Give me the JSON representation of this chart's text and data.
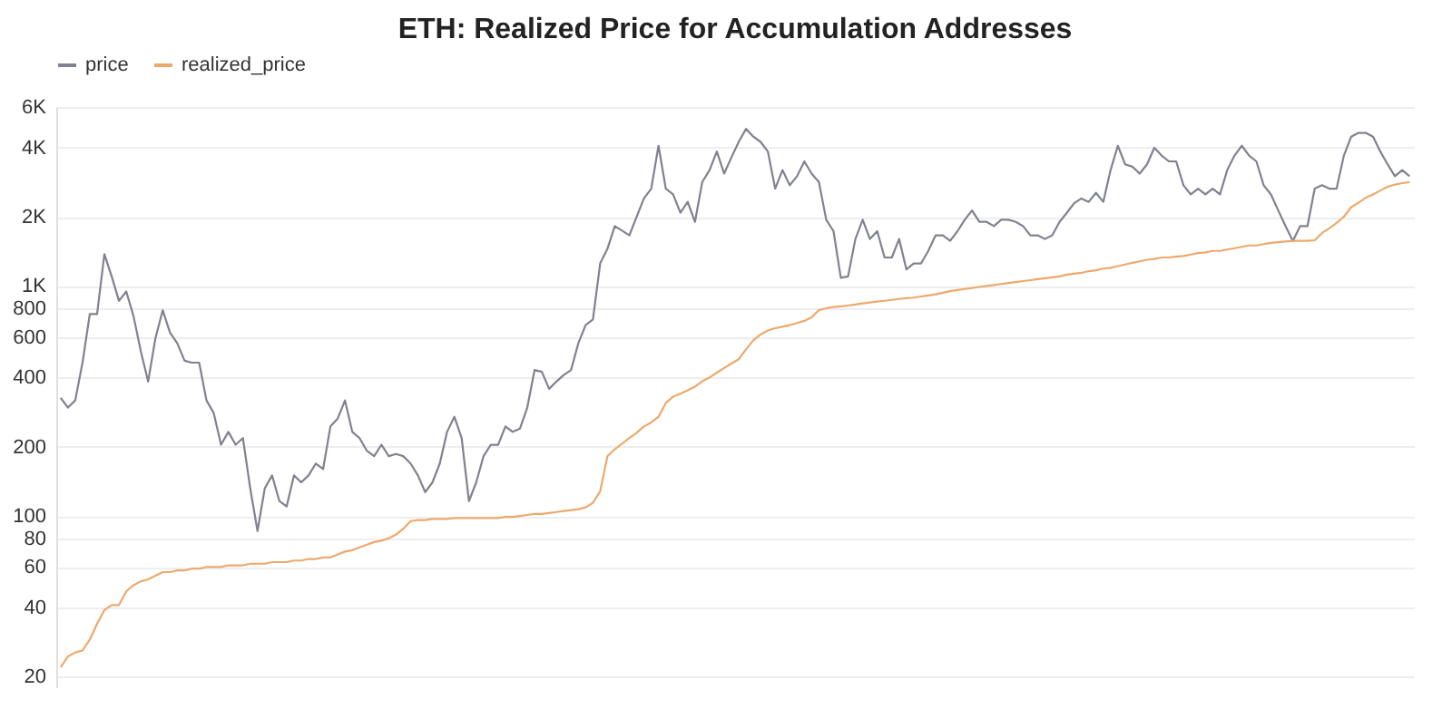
{
  "chart_data": {
    "type": "line",
    "title": "ETH: Realized Price for Accumulation Addresses",
    "categories": [
      null,
      null,
      null,
      null,
      null,
      null,
      null,
      null,
      null,
      null,
      null,
      null,
      null,
      null,
      null,
      null,
      null,
      null,
      null,
      null,
      null,
      null,
      null,
      null,
      null,
      null,
      null,
      null,
      null,
      null,
      null,
      null,
      null,
      null,
      null,
      null,
      null,
      null,
      null,
      null,
      null,
      null,
      null,
      null,
      null,
      null,
      null,
      null,
      null,
      null,
      null,
      null,
      null,
      null,
      null,
      null,
      null,
      null,
      null,
      null,
      null,
      null,
      null,
      null,
      null,
      null,
      null,
      null,
      null,
      null,
      null,
      null,
      null,
      null,
      null,
      null,
      null,
      null,
      null,
      null,
      null,
      null,
      null,
      null,
      null,
      null,
      null,
      null,
      null,
      null,
      null,
      null,
      null,
      null,
      null,
      null,
      null,
      null,
      null,
      null,
      null,
      null,
      null,
      null,
      null,
      null,
      null,
      null,
      null,
      null,
      null,
      null,
      null,
      null,
      null,
      null,
      null,
      null,
      null,
      null,
      null,
      null,
      null,
      null,
      null,
      null,
      null,
      null,
      null,
      null,
      null,
      null,
      null,
      null,
      null,
      null,
      null,
      null,
      null,
      null,
      null,
      null,
      null,
      null,
      null,
      null,
      null,
      null,
      null,
      null,
      null,
      null,
      null,
      null,
      null,
      null,
      null,
      null,
      null,
      null,
      null,
      null,
      null,
      null,
      null,
      null,
      null,
      null,
      null,
      null,
      null,
      null,
      null,
      null,
      null,
      null,
      null,
      null,
      null,
      null,
      null,
      null,
      null,
      null,
      null,
      null
    ],
    "series": [
      {
        "name": "price",
        "color": "#80828f",
        "values": [
          326,
          296,
          318,
          464,
          755,
          755,
          1375,
          1100,
          861,
          946,
          738,
          520,
          384,
          593,
          784,
          627,
          563,
          473,
          464,
          464,
          318,
          280,
          204,
          232,
          204,
          218,
          132,
          86,
          132,
          150,
          116,
          110,
          150,
          140,
          150,
          169,
          160,
          245,
          265,
          318,
          232,
          218,
          192,
          182,
          204,
          182,
          186,
          182,
          169,
          150,
          127,
          140,
          169,
          232,
          270,
          218,
          116,
          140,
          182,
          204,
          204,
          245,
          232,
          240,
          296,
          431,
          423,
          357,
          384,
          410,
          431,
          563,
          675,
          715,
          1253,
          1452,
          1820,
          1740,
          1660,
          2000,
          2400,
          2650,
          4070,
          2650,
          2500,
          2080,
          2320,
          1900,
          2830,
          3190,
          3840,
          3080,
          3620,
          4230,
          4820,
          4460,
          4230,
          3840,
          2650,
          3190,
          2740,
          3000,
          3480,
          3080,
          2830,
          1940,
          1730,
          1085,
          1100,
          1600,
          1940,
          1600,
          1730,
          1330,
          1330,
          1600,
          1180,
          1253,
          1253,
          1420,
          1660,
          1660,
          1570,
          1730,
          1940,
          2130,
          1900,
          1900,
          1820,
          1940,
          1940,
          1900,
          1820,
          1660,
          1660,
          1600,
          1660,
          1900,
          2080,
          2290,
          2400,
          2320,
          2540,
          2320,
          3190,
          4070,
          3380,
          3300,
          3080,
          3380,
          3990,
          3690,
          3480,
          3480,
          2740,
          2500,
          2650,
          2500,
          2650,
          2500,
          3190,
          3690,
          4070,
          3690,
          3480,
          2740,
          2500,
          2130,
          1820,
          1570,
          1820,
          1820,
          2650,
          2740,
          2650,
          2650,
          3690,
          4460,
          4630,
          4630,
          4460,
          3840,
          3380,
          3000,
          3190,
          3000
        ]
      },
      {
        "name": "realized_price",
        "color": "#eda96c",
        "values": [
          22,
          24.5,
          25.5,
          26,
          29,
          34,
          39,
          41,
          41,
          47,
          50,
          52,
          53,
          55,
          57,
          57,
          58,
          58,
          59,
          59,
          60,
          60,
          60,
          61,
          61,
          61,
          62,
          62,
          62,
          63,
          63,
          63,
          64,
          64,
          65,
          65,
          66,
          66,
          68,
          70,
          71,
          73,
          75,
          77,
          78,
          80,
          83,
          88,
          95,
          96,
          96,
          97,
          97,
          97,
          98,
          98,
          98,
          98,
          98,
          98,
          98,
          99,
          99,
          100,
          101,
          102,
          102,
          103,
          104,
          105,
          106,
          107,
          109,
          114,
          128,
          182,
          195,
          206,
          218,
          230,
          245,
          255,
          270,
          310,
          330,
          340,
          352,
          365,
          385,
          400,
          420,
          440,
          460,
          480,
          530,
          580,
          615,
          640,
          655,
          665,
          675,
          690,
          705,
          730,
          785,
          800,
          810,
          815,
          822,
          830,
          840,
          848,
          855,
          862,
          870,
          878,
          885,
          890,
          900,
          910,
          920,
          935,
          950,
          960,
          970,
          980,
          990,
          1000,
          1010,
          1020,
          1030,
          1040,
          1050,
          1060,
          1070,
          1080,
          1090,
          1100,
          1120,
          1130,
          1140,
          1160,
          1170,
          1190,
          1200,
          1220,
          1240,
          1260,
          1280,
          1300,
          1310,
          1330,
          1330,
          1340,
          1350,
          1370,
          1390,
          1400,
          1420,
          1420,
          1440,
          1460,
          1480,
          1500,
          1500,
          1520,
          1540,
          1550,
          1560,
          1570,
          1570,
          1570,
          1580,
          1700,
          1780,
          1880,
          2000,
          2200,
          2300,
          2420,
          2500,
          2600,
          2700,
          2760,
          2800,
          2830
        ]
      }
    ],
    "log": true,
    "ylim": [
      18,
      6000
    ],
    "yticks": [
      20,
      40,
      60,
      80,
      100,
      200,
      400,
      600,
      800,
      {
        "value": 1000,
        "label": "1K"
      },
      {
        "value": 2000,
        "label": "2K"
      },
      {
        "value": 4000,
        "label": "4K"
      },
      {
        "value": 6000,
        "label": "6K"
      }
    ],
    "grid": "y",
    "legend": "top"
  }
}
